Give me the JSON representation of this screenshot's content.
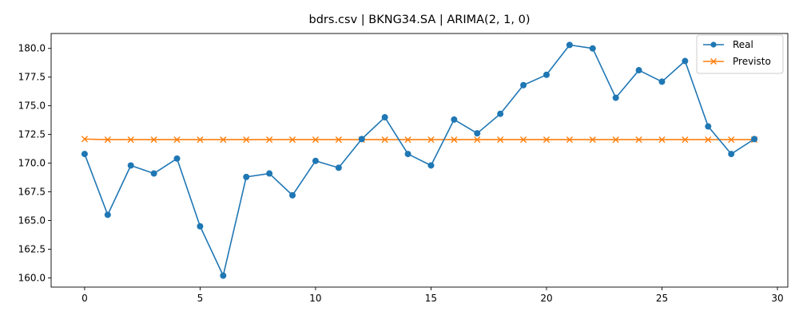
{
  "chart_data": {
    "type": "line",
    "title": "bdrs.csv | BKNG34.SA | ARIMA(2, 1, 0)",
    "xlabel": "",
    "ylabel": "",
    "xlim": [
      -1.45,
      30.45
    ],
    "ylim": [
      159.2,
      181.3
    ],
    "xticks": [
      0,
      5,
      10,
      15,
      20,
      25,
      30
    ],
    "yticks": [
      160.0,
      162.5,
      165.0,
      167.5,
      170.0,
      172.5,
      175.0,
      177.5,
      180.0
    ],
    "x": [
      0,
      1,
      2,
      3,
      4,
      5,
      6,
      7,
      8,
      9,
      10,
      11,
      12,
      13,
      14,
      15,
      16,
      17,
      18,
      19,
      20,
      21,
      22,
      23,
      24,
      25,
      26,
      27,
      28,
      29
    ],
    "grid": false,
    "legend_position": "top-right",
    "series": [
      {
        "name": "Real",
        "color": "#1f77b4",
        "marker": "circle",
        "values": [
          170.8,
          165.5,
          169.8,
          169.1,
          170.4,
          164.5,
          160.2,
          168.8,
          169.1,
          167.2,
          170.2,
          169.6,
          172.1,
          174.0,
          170.8,
          169.8,
          173.8,
          172.6,
          174.3,
          176.8,
          177.7,
          180.3,
          180.0,
          175.7,
          178.1,
          177.1,
          178.9,
          173.2,
          170.8,
          172.1
        ]
      },
      {
        "name": "Previsto",
        "color": "#ff7f0e",
        "marker": "x",
        "values": [
          172.1,
          172.05,
          172.05,
          172.05,
          172.05,
          172.05,
          172.05,
          172.05,
          172.05,
          172.05,
          172.05,
          172.05,
          172.05,
          172.05,
          172.05,
          172.05,
          172.05,
          172.05,
          172.05,
          172.05,
          172.05,
          172.05,
          172.05,
          172.05,
          172.05,
          172.05,
          172.05,
          172.05,
          172.05,
          172.05
        ]
      }
    ]
  }
}
